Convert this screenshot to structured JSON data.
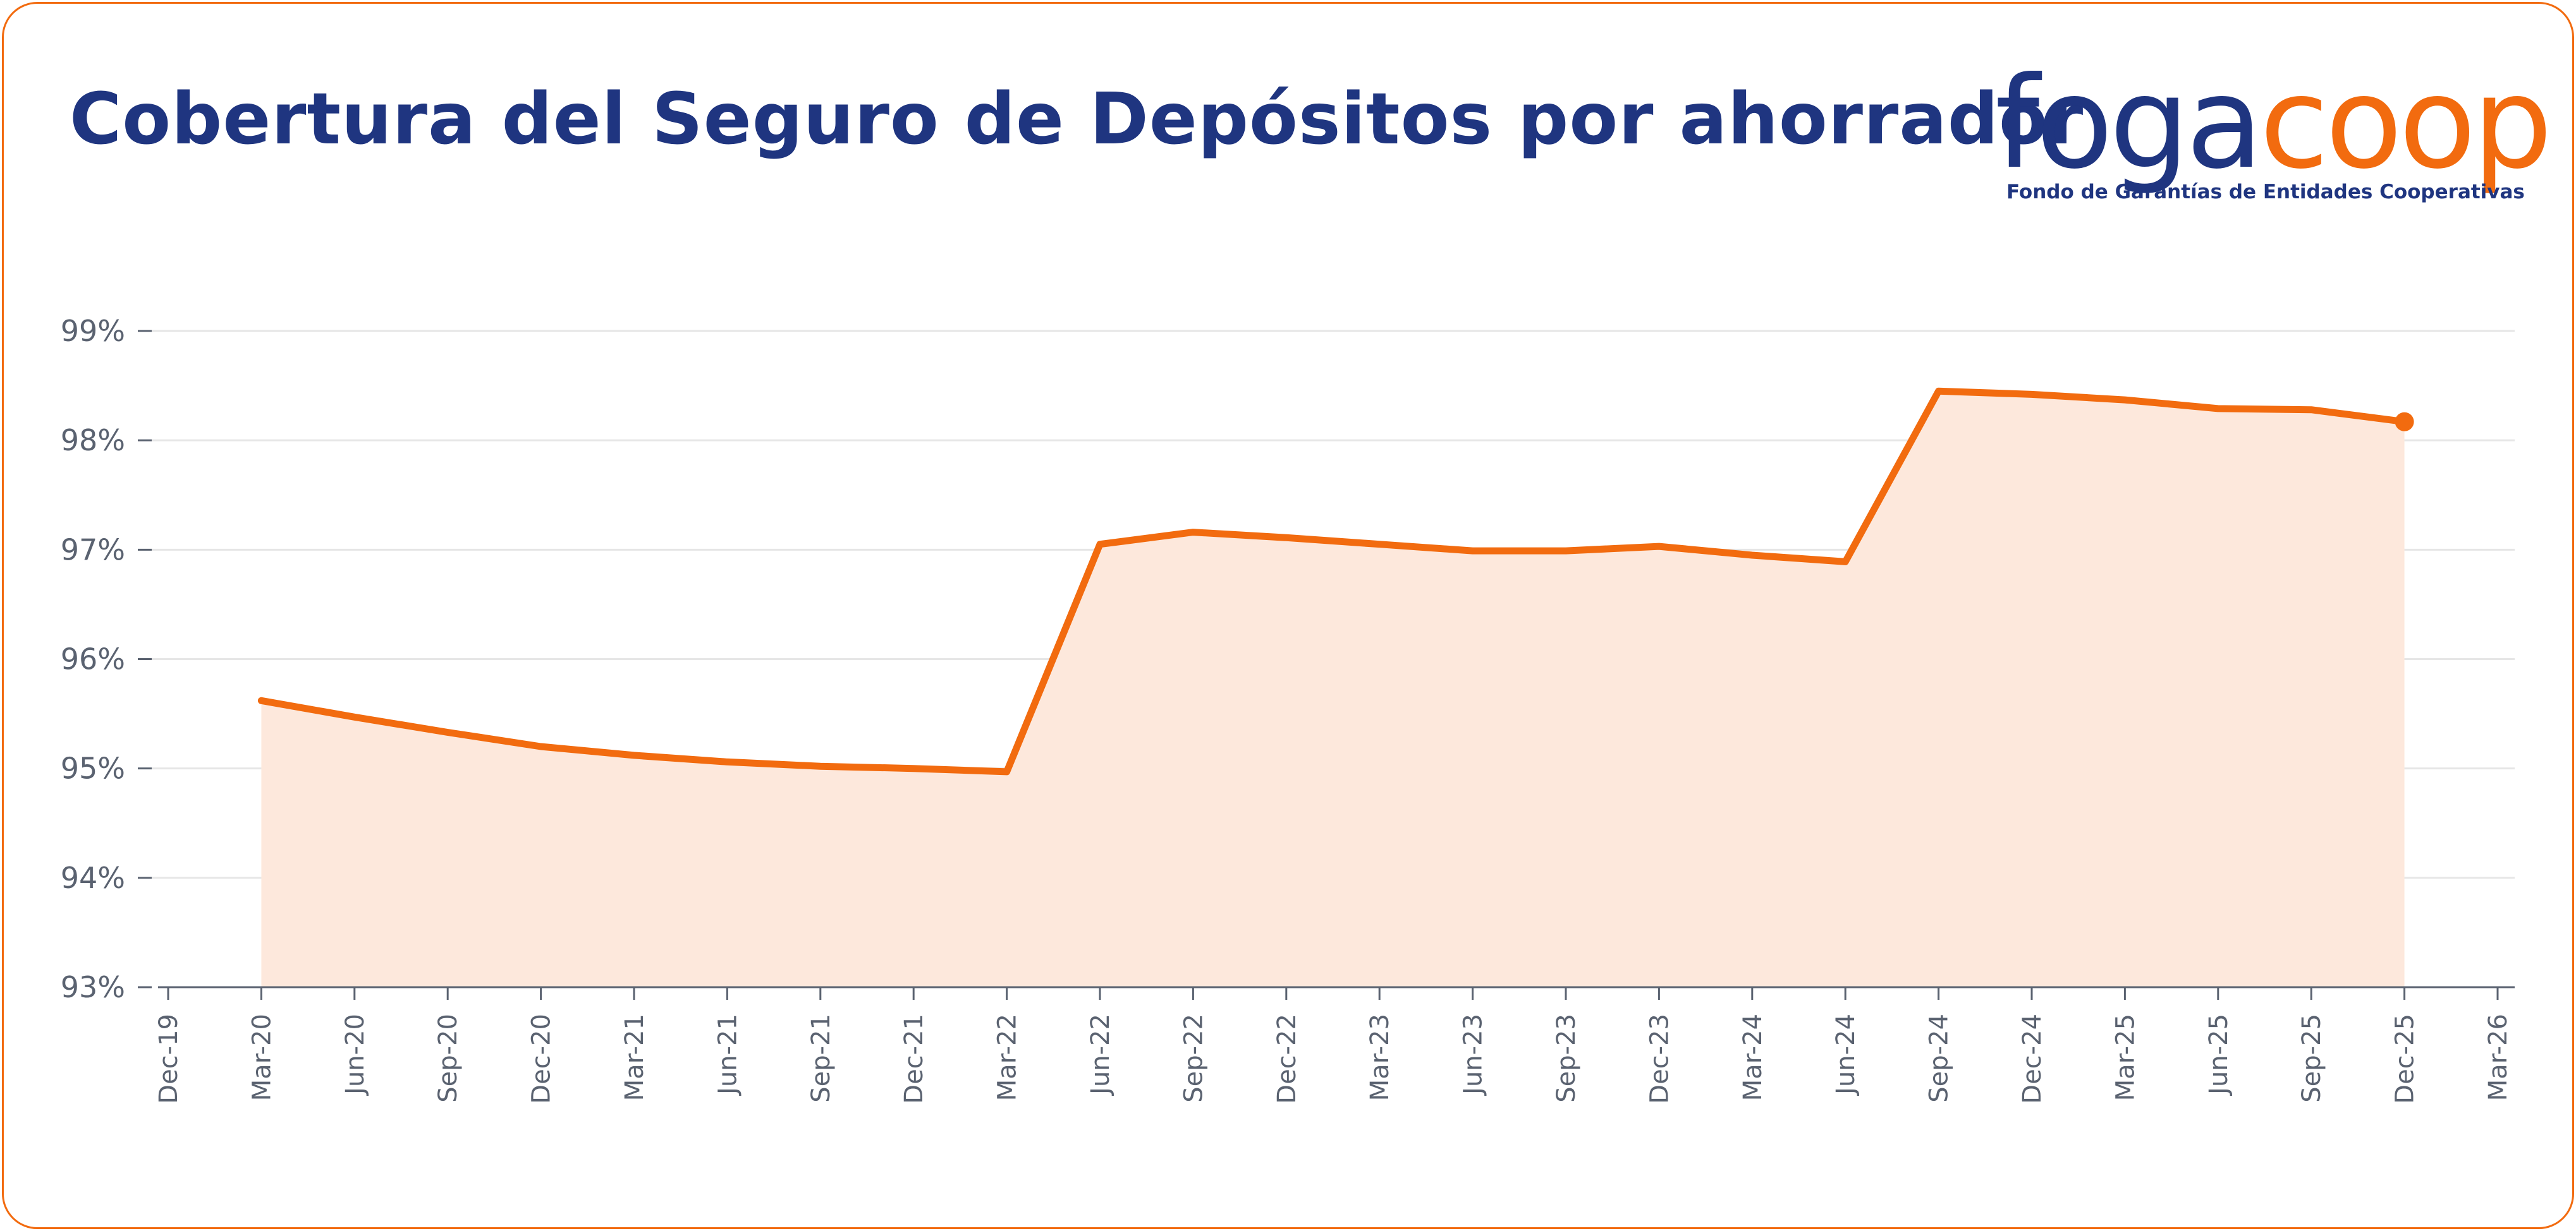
{
  "header": {
    "title": "Cobertura del Seguro de Depósitos por ahorrador"
  },
  "logo": {
    "word_main": "foga",
    "word_accent": "coop",
    "tagline": "Fondo de Garantías de Entidades Cooperativas"
  },
  "colors": {
    "line": "#f26b0f",
    "area": "#fde8dc",
    "title": "#1f3580",
    "grid": "#e6e6e6",
    "axis": "#5a6270"
  },
  "chart_data": {
    "type": "area",
    "title": "Cobertura del Seguro de Depósitos por ahorrador",
    "xlabel": "",
    "ylabel": "",
    "ylim": [
      93,
      99
    ],
    "y_ticks": [
      "93%",
      "94%",
      "95%",
      "96%",
      "97%",
      "98%",
      "99%"
    ],
    "x_ticks": [
      "Dec-19",
      "Mar-20",
      "Jun-20",
      "Sep-20",
      "Dec-20",
      "Mar-21",
      "Jun-21",
      "Sep-21",
      "Dec-21",
      "Mar-22",
      "Jun-22",
      "Sep-22",
      "Dec-22",
      "Mar-23",
      "Jun-23",
      "Sep-23",
      "Dec-23",
      "Mar-24",
      "Jun-24",
      "Sep-24",
      "Dec-24",
      "Mar-25",
      "Jun-25",
      "Sep-25",
      "Dec-25",
      "Mar-26"
    ],
    "grid": true,
    "series": [
      {
        "x": [
          "Mar-20",
          "Jun-20",
          "Sep-20",
          "Dec-20",
          "Mar-21",
          "Jun-21",
          "Sep-21",
          "Dec-21",
          "Mar-22",
          "Jun-22",
          "Sep-22",
          "Dec-22",
          "Mar-23",
          "Jun-23",
          "Sep-23",
          "Dec-23",
          "Mar-24",
          "Jun-24",
          "Sep-24",
          "Dec-24",
          "Mar-25",
          "Jun-25",
          "Sep-25",
          "Dec-25"
        ],
        "values": [
          95.62,
          95.47,
          95.33,
          95.2,
          95.12,
          95.06,
          95.02,
          95.0,
          94.97,
          97.05,
          97.16,
          97.11,
          97.05,
          96.99,
          96.99,
          97.03,
          96.95,
          96.89,
          98.45,
          98.42,
          98.37,
          98.29,
          98.28,
          98.17
        ]
      }
    ]
  }
}
